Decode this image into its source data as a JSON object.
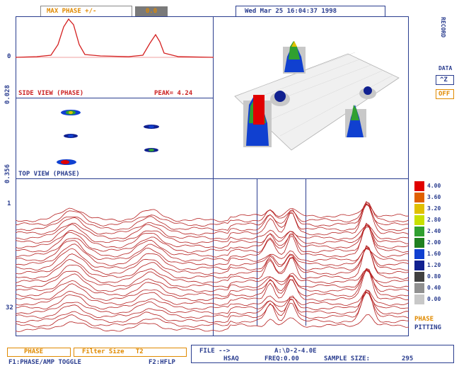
{
  "header": {
    "max_phase_label": "MAX PHASE +/-",
    "max_phase_value": "0.0",
    "datetime": "Wed Mar 25 16:04:37 1998"
  },
  "right_panel": {
    "record_label": "RECORD",
    "data_label": "DATA",
    "btn1": "^Z",
    "btn2": "OFF"
  },
  "side_view": {
    "title": "SIDE VIEW (PHASE)",
    "peak": "PEAK= 4.24",
    "y_top": "0",
    "y_axis": "0.028"
  },
  "top_view": {
    "title": "TOP VIEW (PHASE)",
    "y_axis": "0.356"
  },
  "strip": {
    "y_top": "1",
    "y_bottom": "32"
  },
  "scale": {
    "labels": [
      "4.00",
      "3.60",
      "3.20",
      "2.80",
      "2.40",
      "2.00",
      "1.60",
      "1.20",
      "0.80",
      "0.40",
      "0.00"
    ],
    "colors": [
      "#e00000",
      "#e06000",
      "#e0c000",
      "#c8e000",
      "#30a030",
      "#208020",
      "#1040d0",
      "#102090",
      "#404040",
      "#909090",
      "#c8c8c8"
    ],
    "mode": "PHASE",
    "sub": "PITTING"
  },
  "footer": {
    "mode_btn": "PHASE",
    "filter": "Filter Size   T2",
    "f1": "F1:PHASE/AMP TOGGLE",
    "f2": "F2:HFLP",
    "file_label": "FILE -->",
    "file_value": "A:\\D-2-4.0E",
    "hsaq": "HSAQ",
    "freq": "FREQ:0.00",
    "sample": "SAMPLE SIZE:",
    "sample_value": "295"
  }
}
